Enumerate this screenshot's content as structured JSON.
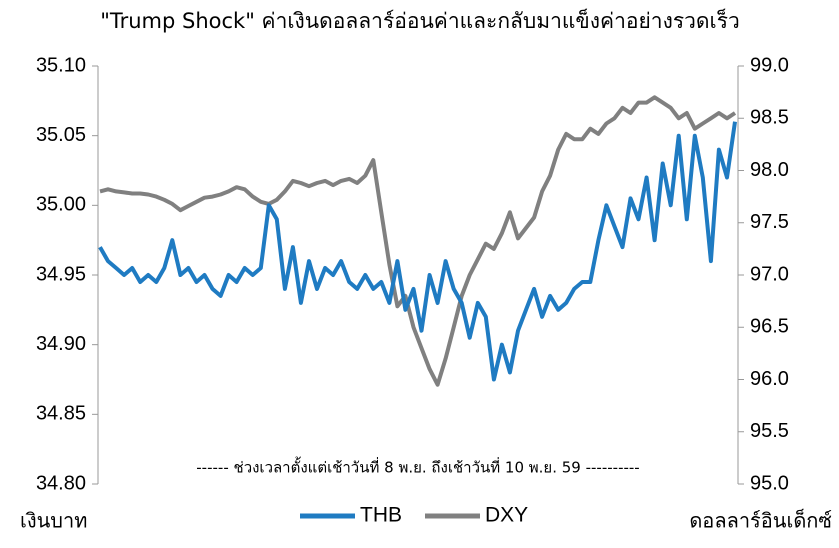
{
  "chart_data": {
    "type": "line",
    "title": "\"Trump Shock\" ค่าเงินดอลลาร์อ่อนค่าและกลับมาแข็งค่าอย่างรวดเร็ว",
    "y_label": "เงินบาท",
    "y2_label": "ดอลลาร์อินเด็กซ์",
    "annotation": "------ ช่วงเวลาตั้งแต่เช้าวันที่ 8 พ.ย. ถึงเช้าวันที่ 10 พ.ย. 59 ----------",
    "ylim": [
      34.8,
      35.1
    ],
    "yticks": [
      {
        "value": 34.8,
        "label": "34.80"
      },
      34.85,
      {
        "value": 34.9,
        "label": "34.90"
      },
      34.95,
      {
        "value": 35.0,
        "label": "35.00"
      },
      35.05,
      {
        "value": 35.1,
        "label": "35.10"
      }
    ],
    "y2lim": [
      95.0,
      99.0
    ],
    "y2ticks": [
      {
        "value": 95.0,
        "label": "95.0"
      },
      95.5,
      {
        "value": 96.0,
        "label": "96.0"
      },
      96.5,
      {
        "value": 97.0,
        "label": "97.0"
      },
      97.5,
      {
        "value": 98.0,
        "label": "98.0"
      },
      98.5,
      {
        "value": 99.0,
        "label": "99.0"
      }
    ],
    "legend": "bottom",
    "series": [
      {
        "name": "THB",
        "color": "#1f7bc2",
        "values": [
          34.97,
          34.96,
          34.955,
          34.95,
          34.955,
          34.945,
          34.95,
          34.945,
          34.955,
          34.975,
          34.95,
          34.955,
          34.945,
          34.95,
          34.94,
          34.935,
          34.95,
          34.945,
          34.955,
          34.95,
          34.955,
          35.0,
          34.99,
          34.94,
          34.97,
          34.93,
          34.96,
          34.94,
          34.955,
          34.95,
          34.96,
          34.945,
          34.94,
          34.95,
          34.94,
          34.945,
          34.93,
          34.96,
          34.925,
          34.94,
          34.91,
          34.95,
          34.93,
          34.96,
          34.94,
          34.93,
          34.905,
          34.93,
          34.92,
          34.875,
          34.9,
          34.88,
          34.91,
          34.925,
          34.94,
          34.92,
          34.935,
          34.925,
          34.93,
          34.94,
          34.945,
          34.945,
          34.975,
          35.0,
          34.985,
          34.97,
          35.005,
          34.99,
          35.02,
          34.975,
          35.03,
          35.0,
          35.05,
          34.99,
          35.05,
          35.02,
          34.96,
          35.04,
          35.02,
          35.06
        ]
      },
      {
        "name": "DXY",
        "color": "#808080",
        "axis": "y2",
        "values": [
          97.8,
          97.82,
          97.8,
          97.79,
          97.78,
          97.78,
          97.77,
          97.75,
          97.72,
          97.68,
          97.62,
          97.66,
          97.7,
          97.74,
          97.75,
          97.77,
          97.8,
          97.84,
          97.82,
          97.75,
          97.7,
          97.68,
          97.72,
          97.8,
          97.9,
          97.88,
          97.85,
          97.88,
          97.9,
          97.86,
          97.9,
          97.92,
          97.88,
          97.95,
          98.1,
          97.6,
          97.1,
          96.7,
          96.8,
          96.5,
          96.3,
          96.1,
          95.95,
          96.2,
          96.5,
          96.8,
          97.0,
          97.15,
          97.3,
          97.25,
          97.4,
          97.6,
          97.35,
          97.45,
          97.55,
          97.8,
          97.95,
          98.2,
          98.35,
          98.3,
          98.3,
          98.4,
          98.35,
          98.45,
          98.5,
          98.6,
          98.55,
          98.65,
          98.65,
          98.7,
          98.65,
          98.6,
          98.5,
          98.55,
          98.4,
          98.45,
          98.5,
          98.55,
          98.5,
          98.55
        ]
      }
    ]
  }
}
